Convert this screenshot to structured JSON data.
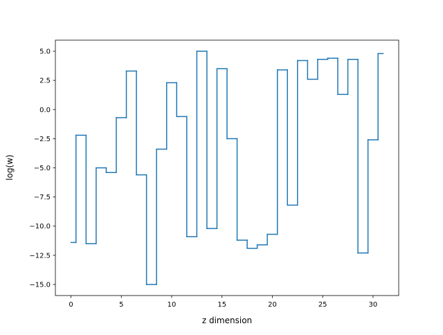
{
  "chart_data": {
    "type": "line",
    "drawstyle": "steps-mid",
    "title": "",
    "xlabel": "z dimension",
    "ylabel": "log(w)",
    "xlim": [
      -1.55,
      32.55
    ],
    "ylim": [
      -15.95,
      5.95
    ],
    "xticks": [
      0,
      5,
      10,
      15,
      20,
      25,
      30
    ],
    "xtick_labels": [
      "0",
      "5",
      "10",
      "15",
      "20",
      "25",
      "30"
    ],
    "yticks": [
      -15.0,
      -12.5,
      -10.0,
      -7.5,
      -5.0,
      -2.5,
      0.0,
      2.5,
      5.0
    ],
    "ytick_labels": [
      "−15.0",
      "−12.5",
      "−10.0",
      "−7.5",
      "−5.0",
      "−2.5",
      "0.0",
      "2.5",
      "5.0"
    ],
    "grid": false,
    "legend": "none",
    "series": [
      {
        "color": "#1f77b4",
        "x": [
          0,
          1,
          2,
          3,
          4,
          5,
          6,
          7,
          8,
          9,
          10,
          11,
          12,
          13,
          14,
          15,
          16,
          17,
          18,
          19,
          20,
          21,
          22,
          23,
          24,
          25,
          26,
          27,
          28,
          29,
          30,
          31
        ],
        "values": [
          -11.4,
          -2.2,
          -11.5,
          -5.0,
          -5.4,
          -0.7,
          3.3,
          -5.6,
          -15.0,
          -3.4,
          2.3,
          -0.6,
          -10.9,
          5.0,
          -10.2,
          3.5,
          -2.5,
          -11.2,
          -11.9,
          -11.6,
          -10.7,
          3.4,
          -8.2,
          4.2,
          2.6,
          4.3,
          4.4,
          1.3,
          4.3,
          -12.3,
          -2.6,
          4.8
        ]
      }
    ]
  }
}
